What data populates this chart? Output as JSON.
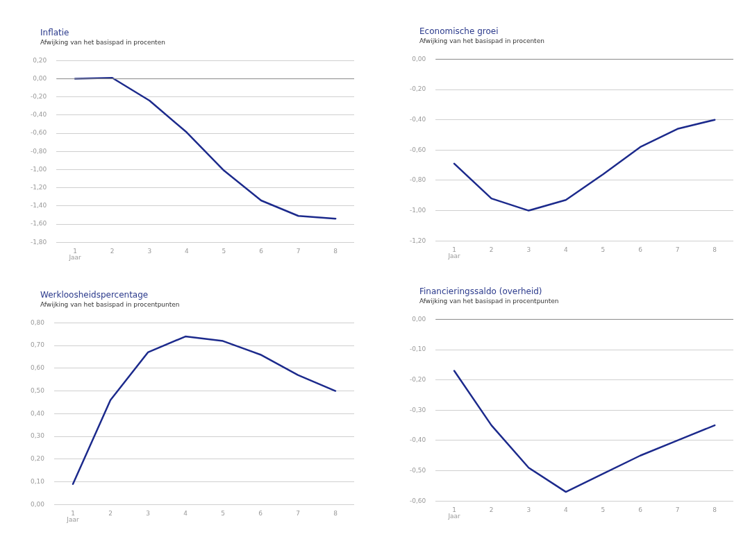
{
  "chart_data": [
    {
      "type": "line",
      "title": "Inflatie",
      "subtitle": "Afwijking van het basispad in procenten",
      "xlabel": "Jaar",
      "categories": [
        "1",
        "2",
        "3",
        "4",
        "5",
        "6",
        "7",
        "8"
      ],
      "series": [
        {
          "color": "#1c2a8c",
          "values": [
            0.0,
            0.01,
            -0.24,
            -0.59,
            -1.01,
            -1.34,
            -1.51,
            -1.54
          ]
        }
      ],
      "ylim": [
        -1.8,
        0.2
      ],
      "yticks": [
        {
          "value": -1.8,
          "label": "-1,80"
        },
        {
          "value": -1.6,
          "label": "-1,60"
        },
        {
          "value": -1.4,
          "label": "-1,40"
        },
        {
          "value": -1.2,
          "label": "-1,20"
        },
        {
          "value": -1.0,
          "label": "-1,00"
        },
        {
          "value": -0.8,
          "label": "-0,80"
        },
        {
          "value": -0.6,
          "label": "-0,60"
        },
        {
          "value": -0.4,
          "label": "-0,40"
        },
        {
          "value": -0.2,
          "label": "-0,20"
        },
        {
          "value": 0,
          "label": "0,00"
        },
        {
          "value": 0.2,
          "label": "0,20"
        }
      ],
      "ref_lines": [
        {
          "axis": "y",
          "value": 0,
          "color": "#8c8c8c"
        }
      ],
      "grid": "y",
      "marker": "none",
      "line_style": "solid"
    },
    {
      "type": "line",
      "title": "Economische groei",
      "subtitle": "Afwijking van het basispad in procenten",
      "xlabel": "Jaar",
      "categories": [
        "1",
        "2",
        "3",
        "4",
        "5",
        "6",
        "7",
        "8"
      ],
      "series": [
        {
          "color": "#1c2a8c",
          "values": [
            -0.69,
            -0.92,
            -1.0,
            -0.93,
            -0.76,
            -0.58,
            -0.46,
            -0.4
          ]
        }
      ],
      "ylim": [
        -1.2,
        0
      ],
      "yticks": [
        {
          "value": -1.2,
          "label": "-1,20"
        },
        {
          "value": -1.0,
          "label": "-1,00"
        },
        {
          "value": -0.8,
          "label": "-0,80"
        },
        {
          "value": -0.6,
          "label": "-0,60"
        },
        {
          "value": -0.4,
          "label": "-0,40"
        },
        {
          "value": -0.2,
          "label": "-0,20"
        },
        {
          "value": 0,
          "label": "0,00"
        }
      ],
      "ref_lines": [
        {
          "axis": "y",
          "value": 0,
          "color": "#8c8c8c"
        }
      ],
      "grid": "y",
      "marker": "none",
      "line_style": "solid"
    },
    {
      "type": "line",
      "title": "Werkloosheidspercentage",
      "subtitle": "Afwijking van het basispad in procentpunten",
      "xlabel": "Jaar",
      "categories": [
        "1",
        "2",
        "3",
        "4",
        "5",
        "6",
        "7",
        "8"
      ],
      "series": [
        {
          "color": "#1c2a8c",
          "values": [
            0.09,
            0.46,
            0.67,
            0.74,
            0.72,
            0.66,
            0.57,
            0.5
          ]
        }
      ],
      "ylim": [
        0,
        0.8
      ],
      "yticks": [
        {
          "value": 0,
          "label": "0,00"
        },
        {
          "value": 0.1,
          "label": "0,10"
        },
        {
          "value": 0.2,
          "label": "0,20"
        },
        {
          "value": 0.3,
          "label": "0,30"
        },
        {
          "value": 0.4,
          "label": "0,40"
        },
        {
          "value": 0.5,
          "label": "0,50"
        },
        {
          "value": 0.6,
          "label": "0,60"
        },
        {
          "value": 0.7,
          "label": "0,70"
        },
        {
          "value": 0.8,
          "label": "0,80"
        }
      ],
      "grid": "y",
      "marker": "none",
      "line_style": "solid"
    },
    {
      "type": "line",
      "title": "Financieringssaldo (overheid)",
      "subtitle": "Afwijking van het basispad in procentpunten",
      "xlabel": "Jaar",
      "categories": [
        "1",
        "2",
        "3",
        "4",
        "5",
        "6",
        "7",
        "8"
      ],
      "series": [
        {
          "color": "#1c2a8c",
          "values": [
            -0.17,
            -0.35,
            -0.49,
            -0.57,
            -0.51,
            -0.45,
            -0.4,
            -0.35
          ]
        }
      ],
      "ylim": [
        -0.6,
        0
      ],
      "yticks": [
        {
          "value": -0.6,
          "label": "-0,60"
        },
        {
          "value": -0.5,
          "label": "-0,50"
        },
        {
          "value": -0.4,
          "label": "-0,40"
        },
        {
          "value": -0.3,
          "label": "-0,30"
        },
        {
          "value": -0.2,
          "label": "-0,20"
        },
        {
          "value": -0.1,
          "label": "-0,10"
        },
        {
          "value": 0,
          "label": "0,00"
        }
      ],
      "ref_lines": [
        {
          "axis": "y",
          "value": 0,
          "color": "#8c8c8c"
        }
      ],
      "grid": "y",
      "marker": "none",
      "line_style": "solid"
    }
  ]
}
